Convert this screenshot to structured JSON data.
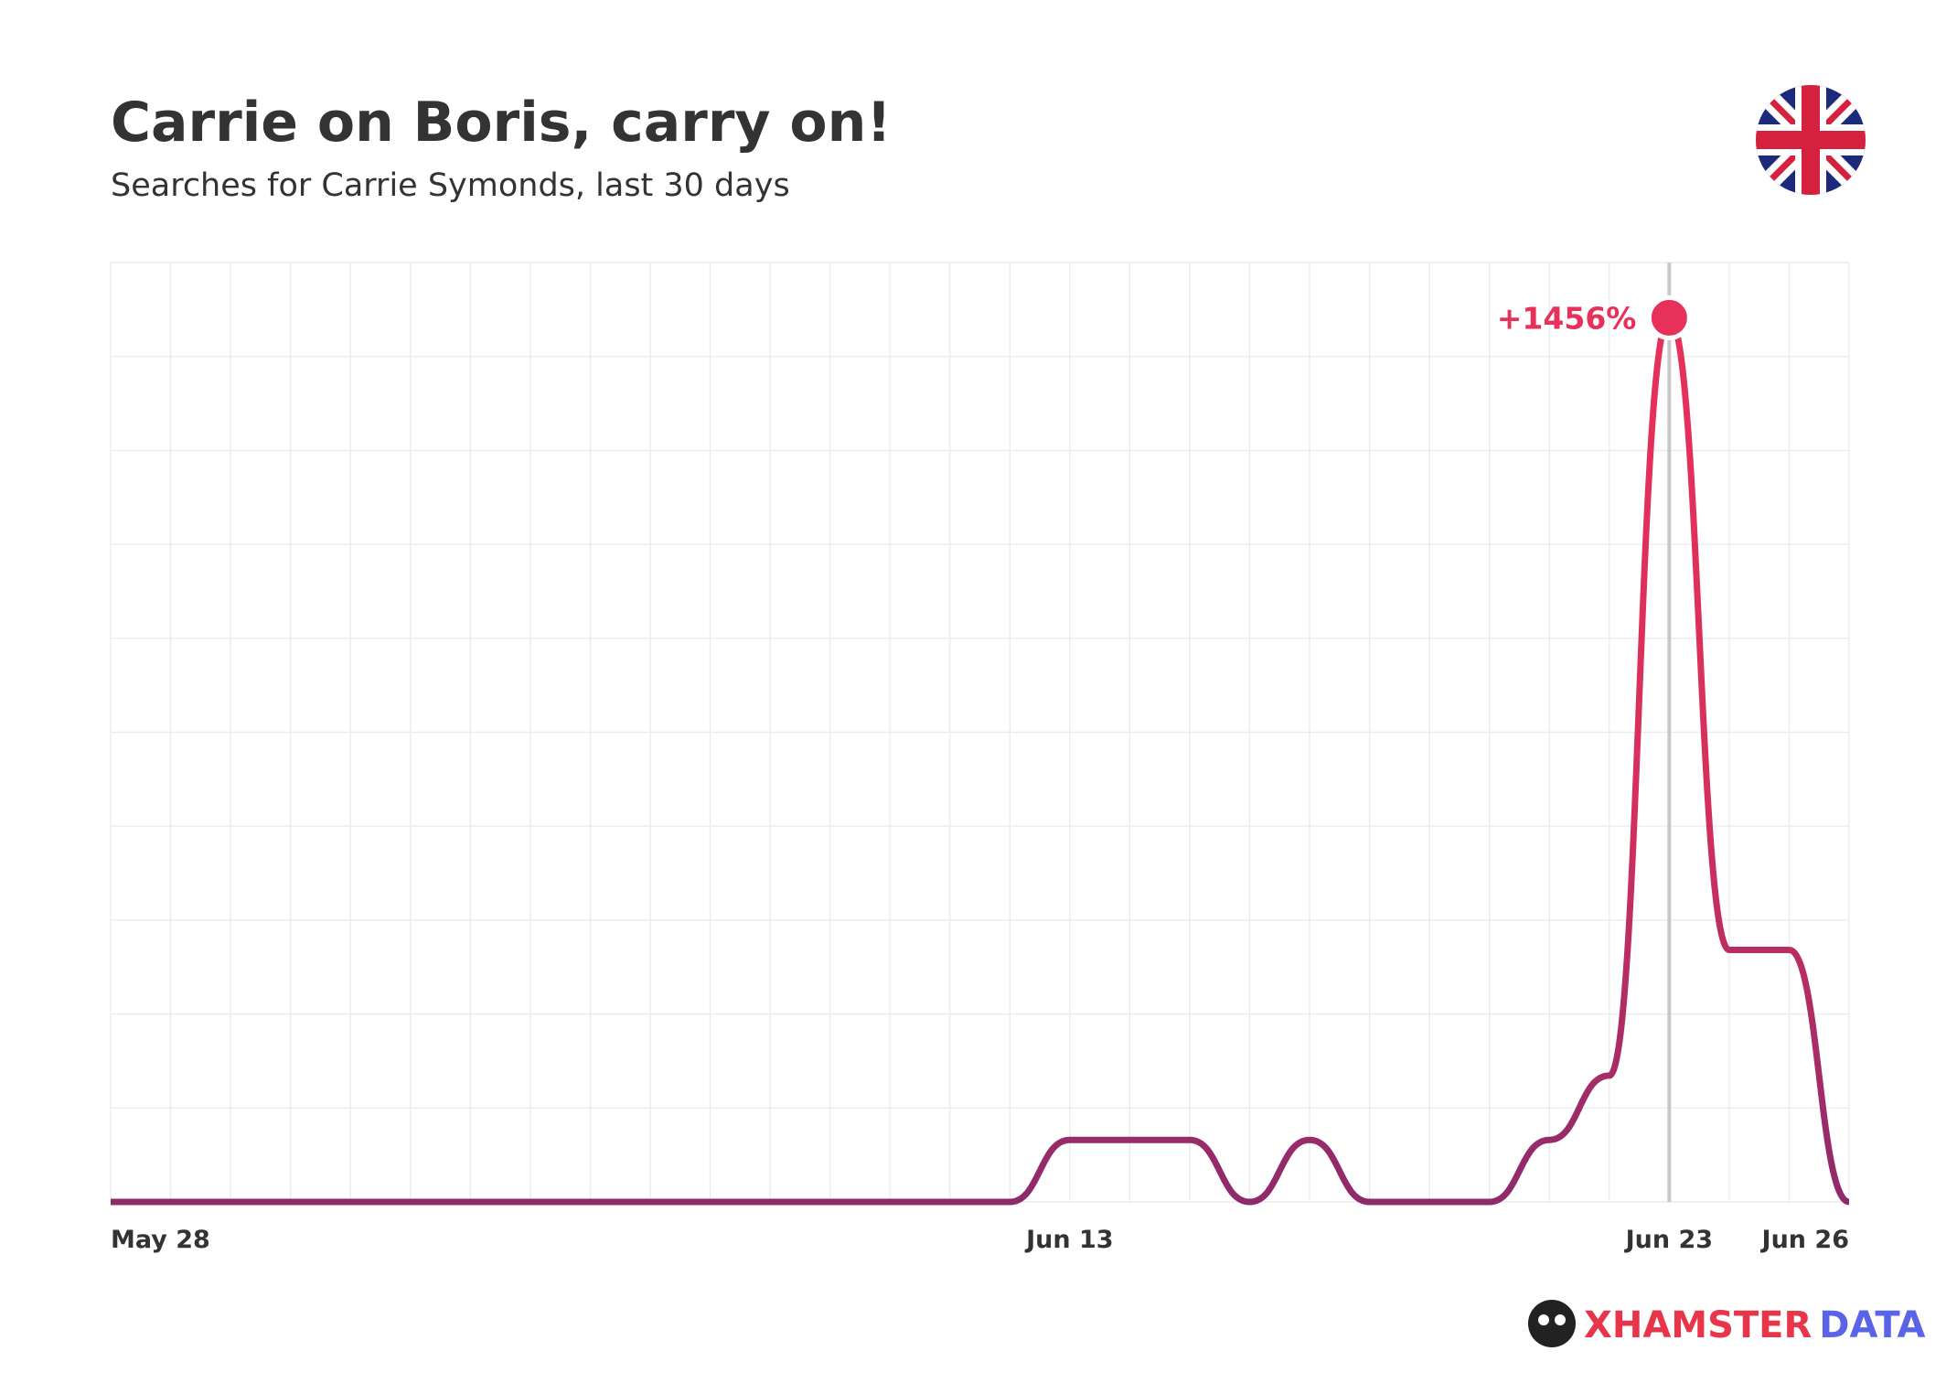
{
  "chart_data": {
    "type": "line",
    "title": "Carrie on Boris, carry on!",
    "subtitle": "Searches for Carrie Symonds, last 30 days",
    "categories": [
      "May 28",
      null,
      null,
      null,
      null,
      null,
      null,
      null,
      null,
      null,
      null,
      null,
      null,
      null,
      null,
      null,
      "Jun 13",
      null,
      null,
      null,
      null,
      null,
      null,
      null,
      null,
      null,
      "Jun 23",
      null,
      null,
      "Jun 26"
    ],
    "series": [
      {
        "color": "#e8315a",
        "values": [
          0,
          0,
          0,
          0,
          0,
          0,
          0,
          0,
          0,
          0,
          0,
          0,
          0,
          0,
          0,
          0,
          102,
          102,
          102,
          0,
          102,
          0,
          0,
          0,
          102,
          208,
          1456,
          415,
          415,
          0
        ],
        "value_labels": [
          null,
          null,
          null,
          null,
          null,
          null,
          null,
          null,
          null,
          null,
          null,
          null,
          null,
          null,
          null,
          null,
          null,
          null,
          null,
          null,
          null,
          null,
          null,
          null,
          null,
          null,
          "+1456%",
          null,
          null,
          null
        ]
      }
    ],
    "ylim": [
      0,
      1547
    ],
    "grid": true,
    "brand": [
      "XHAMSTER",
      "DATA"
    ]
  }
}
